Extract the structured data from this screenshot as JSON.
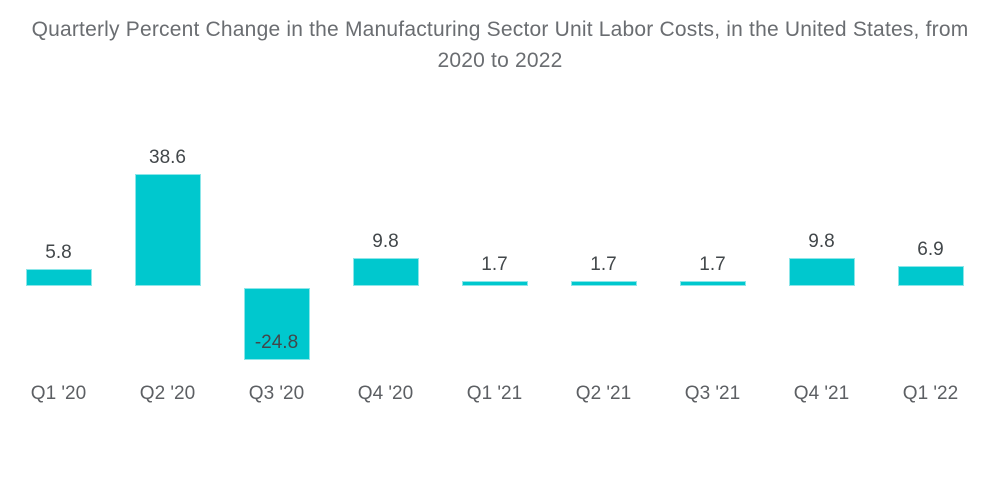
{
  "chart_data": {
    "type": "bar",
    "title": "Quarterly Percent Change in the Manufacturing Sector Unit Labor Costs, in the United States, from 2020 to 2022",
    "categories": [
      "Q1 '20",
      "Q2 '20",
      "Q3 '20",
      "Q4 '20",
      "Q1 '21",
      "Q2 '21",
      "Q3 '21",
      "Q4 '21",
      "Q1 '22"
    ],
    "values": [
      5.8,
      38.6,
      -24.8,
      9.8,
      1.7,
      1.7,
      1.7,
      9.8,
      6.9
    ],
    "value_labels": [
      "5.8",
      "38.6",
      "-24.8",
      "9.8",
      "1.7",
      "1.7",
      "1.7",
      "9.8",
      "6.9"
    ],
    "xlabel": "",
    "ylabel": "",
    "ylim": [
      -30,
      45
    ],
    "grid": false,
    "axes_visible": false,
    "legend": false,
    "data_labels": true,
    "negative_label_inside_bar": true
  },
  "colors": {
    "background": "#FFFFFF",
    "bar": "#00C8CE",
    "title_text": "#6A6D71",
    "value_label_text": "#42474A",
    "axis_label_text": "#5C5F63"
  }
}
